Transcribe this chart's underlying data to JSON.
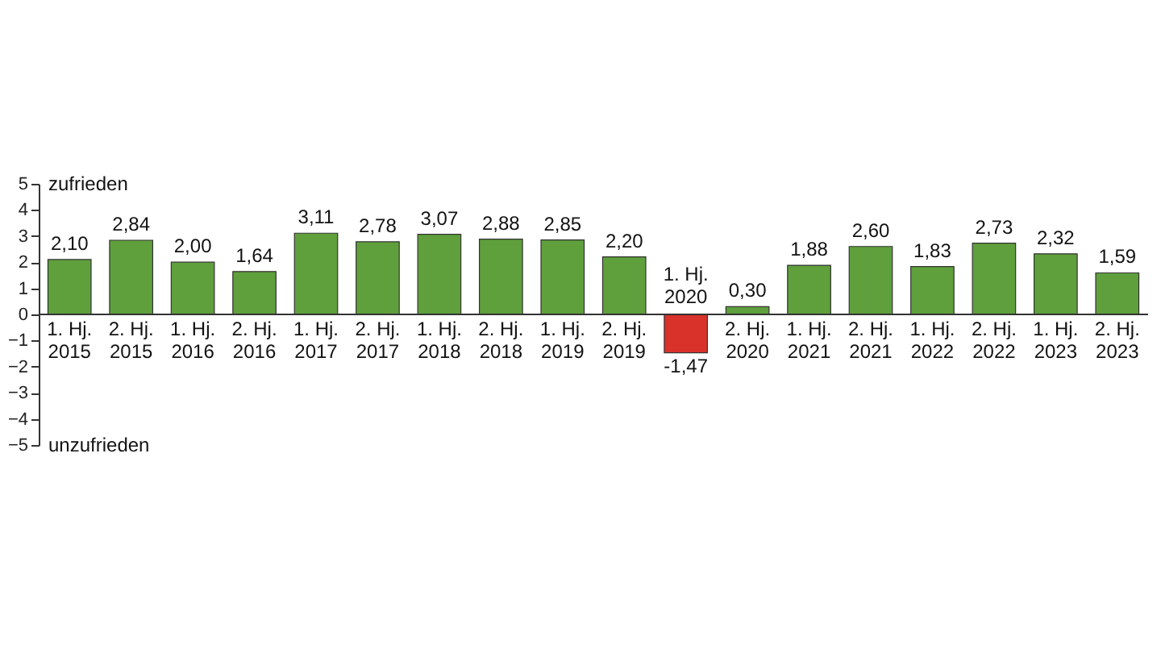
{
  "chart_data": {
    "type": "bar",
    "categories": [
      "1. Hj. 2015",
      "2. Hj. 2015",
      "1. Hj. 2016",
      "2. Hj. 2016",
      "1. Hj. 2017",
      "2. Hj. 2017",
      "1. Hj. 2018",
      "2. Hj. 2018",
      "1. Hj. 2019",
      "2. Hj. 2019",
      "1. Hj. 2020",
      "2. Hj. 2020",
      "1. Hj. 2021",
      "2. Hj. 2021",
      "1. Hj. 2022",
      "2. Hj. 2022",
      "1. Hj. 2023",
      "2. Hj. 2023"
    ],
    "values": [
      2.1,
      2.84,
      2.0,
      1.64,
      3.11,
      2.78,
      3.07,
      2.88,
      2.85,
      2.2,
      -1.47,
      0.3,
      1.88,
      2.6,
      1.83,
      2.73,
      2.32,
      1.59
    ],
    "value_labels": [
      "2,10",
      "2,84",
      "2,00",
      "1,64",
      "3,11",
      "2,78",
      "3,07",
      "2,88",
      "2,85",
      "2,20",
      "-1,47",
      "0,30",
      "1,88",
      "2,60",
      "1,83",
      "2,73",
      "2,32",
      "1,59"
    ],
    "colors": [
      "#5f9f3c",
      "#5f9f3c",
      "#5f9f3c",
      "#5f9f3c",
      "#5f9f3c",
      "#5f9f3c",
      "#5f9f3c",
      "#5f9f3c",
      "#5f9f3c",
      "#5f9f3c",
      "#d8322a",
      "#5f9f3c",
      "#5f9f3c",
      "#5f9f3c",
      "#5f9f3c",
      "#5f9f3c",
      "#5f9f3c",
      "#5f9f3c"
    ],
    "ylim": [
      -5,
      5
    ],
    "yticks": [
      -5,
      -4,
      -3,
      -2,
      -1,
      0,
      1,
      2,
      3,
      4,
      5
    ],
    "annotations": [
      "zufrieden",
      "unzufrieden"
    ],
    "grid": false
  }
}
